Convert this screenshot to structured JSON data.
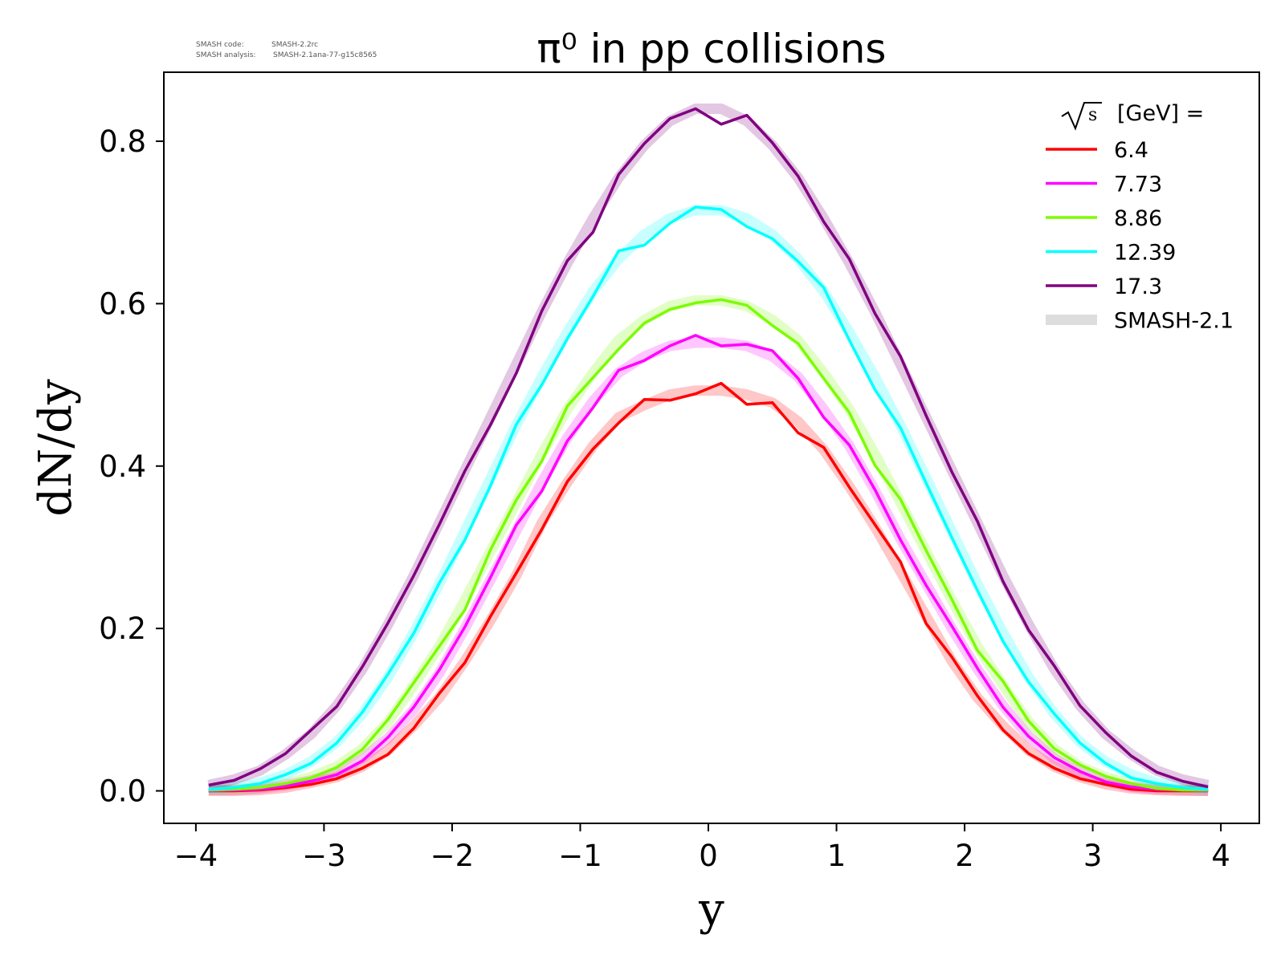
{
  "meta": {
    "code_label": "SMASH code:",
    "code_value": "SMASH-2.2rc",
    "analysis_label": "SMASH analysis:",
    "analysis_value": "SMASH-2.1ana-77-g15c8565"
  },
  "chart_data": {
    "type": "line",
    "title": "π⁰ in pp collisions",
    "xlabel": "y",
    "ylabel": "dN/dy",
    "xlim": [
      -4.25,
      4.3
    ],
    "ylim": [
      -0.04,
      0.885
    ],
    "xticks": [
      -4,
      -3,
      -2,
      -1,
      0,
      1,
      2,
      3,
      4
    ],
    "xtick_labels": [
      "−4",
      "−3",
      "−2",
      "−1",
      "0",
      "1",
      "2",
      "3",
      "4"
    ],
    "yticks": [
      0.0,
      0.2,
      0.4,
      0.6,
      0.8
    ],
    "ytick_labels": [
      "0.0",
      "0.2",
      "0.4",
      "0.6",
      "0.8"
    ],
    "grid": false,
    "legend": {
      "position": "top-right",
      "title": "[GeV] =",
      "title_symbol": "√s",
      "reference_label": "SMASH-2.1",
      "reference_color": "#dddddd"
    },
    "x": [
      -3.9,
      -3.7,
      -3.5,
      -3.3,
      -3.1,
      -2.9,
      -2.7,
      -2.5,
      -2.3,
      -2.1,
      -1.9,
      -1.7,
      -1.5,
      -1.3,
      -1.1,
      -0.9,
      -0.7,
      -0.5,
      -0.3,
      -0.1,
      0.1,
      0.3,
      0.5,
      0.7,
      0.9,
      1.1,
      1.3,
      1.5,
      1.7,
      1.9,
      2.1,
      2.3,
      2.5,
      2.7,
      2.9,
      3.1,
      3.3,
      3.5,
      3.7,
      3.9
    ],
    "series": [
      {
        "name": "6.4",
        "color": "#ff0000",
        "values": [
          0.0,
          0.0,
          0.001,
          0.004,
          0.008,
          0.015,
          0.028,
          0.045,
          0.077,
          0.12,
          0.158,
          0.215,
          0.268,
          0.322,
          0.381,
          0.421,
          0.453,
          0.482,
          0.481,
          0.489,
          0.502,
          0.476,
          0.478,
          0.441,
          0.423,
          0.374,
          0.328,
          0.282,
          0.206,
          0.165,
          0.117,
          0.075,
          0.046,
          0.028,
          0.015,
          0.008,
          0.002,
          0.0,
          0.0,
          0.0
        ],
        "reference": [
          0.0,
          0.0,
          0.001,
          0.004,
          0.01,
          0.017,
          0.03,
          0.05,
          0.08,
          0.115,
          0.16,
          0.21,
          0.265,
          0.33,
          0.38,
          0.425,
          0.46,
          0.475,
          0.488,
          0.493,
          0.493,
          0.488,
          0.478,
          0.455,
          0.42,
          0.375,
          0.325,
          0.27,
          0.215,
          0.16,
          0.115,
          0.08,
          0.05,
          0.03,
          0.017,
          0.008,
          0.003,
          0.001,
          0.0,
          0.0
        ]
      },
      {
        "name": "7.73",
        "color": "#ff00ff",
        "values": [
          0.0,
          0.001,
          0.002,
          0.006,
          0.012,
          0.02,
          0.037,
          0.066,
          0.103,
          0.149,
          0.202,
          0.263,
          0.327,
          0.369,
          0.431,
          0.472,
          0.518,
          0.53,
          0.548,
          0.561,
          0.548,
          0.55,
          0.542,
          0.508,
          0.46,
          0.426,
          0.371,
          0.309,
          0.253,
          0.203,
          0.151,
          0.103,
          0.067,
          0.041,
          0.024,
          0.011,
          0.005,
          0.002,
          0.001,
          0.0
        ],
        "reference": [
          0.001,
          0.001,
          0.003,
          0.007,
          0.013,
          0.022,
          0.04,
          0.065,
          0.1,
          0.145,
          0.2,
          0.26,
          0.32,
          0.38,
          0.435,
          0.48,
          0.515,
          0.535,
          0.548,
          0.552,
          0.552,
          0.548,
          0.535,
          0.51,
          0.47,
          0.425,
          0.37,
          0.31,
          0.255,
          0.2,
          0.15,
          0.105,
          0.067,
          0.04,
          0.023,
          0.012,
          0.005,
          0.002,
          0.001,
          0.0
        ]
      },
      {
        "name": "8.86",
        "color": "#7cfc00",
        "values": [
          0.001,
          0.002,
          0.004,
          0.009,
          0.016,
          0.029,
          0.051,
          0.088,
          0.133,
          0.178,
          0.223,
          0.297,
          0.358,
          0.406,
          0.474,
          0.509,
          0.544,
          0.576,
          0.593,
          0.601,
          0.605,
          0.598,
          0.573,
          0.551,
          0.508,
          0.466,
          0.401,
          0.359,
          0.296,
          0.236,
          0.173,
          0.135,
          0.086,
          0.052,
          0.032,
          0.018,
          0.009,
          0.003,
          0.001,
          0.001
        ],
        "reference": [
          0.001,
          0.002,
          0.004,
          0.009,
          0.017,
          0.03,
          0.052,
          0.085,
          0.13,
          0.178,
          0.235,
          0.295,
          0.355,
          0.415,
          0.47,
          0.515,
          0.555,
          0.58,
          0.597,
          0.604,
          0.604,
          0.597,
          0.58,
          0.555,
          0.515,
          0.47,
          0.415,
          0.355,
          0.295,
          0.235,
          0.178,
          0.13,
          0.085,
          0.052,
          0.03,
          0.017,
          0.009,
          0.004,
          0.002,
          0.001
        ]
      },
      {
        "name": "12.39",
        "color": "#00ffff",
        "values": [
          0.002,
          0.004,
          0.009,
          0.02,
          0.034,
          0.059,
          0.097,
          0.144,
          0.194,
          0.256,
          0.309,
          0.376,
          0.451,
          0.5,
          0.557,
          0.609,
          0.665,
          0.672,
          0.699,
          0.719,
          0.716,
          0.695,
          0.68,
          0.652,
          0.62,
          0.555,
          0.494,
          0.447,
          0.379,
          0.312,
          0.247,
          0.184,
          0.134,
          0.095,
          0.059,
          0.034,
          0.016,
          0.009,
          0.004,
          0.002
        ],
        "reference": [
          0.002,
          0.005,
          0.01,
          0.02,
          0.036,
          0.06,
          0.095,
          0.14,
          0.195,
          0.255,
          0.32,
          0.385,
          0.45,
          0.51,
          0.565,
          0.615,
          0.655,
          0.685,
          0.705,
          0.715,
          0.715,
          0.705,
          0.685,
          0.655,
          0.615,
          0.565,
          0.51,
          0.45,
          0.385,
          0.32,
          0.255,
          0.195,
          0.14,
          0.095,
          0.06,
          0.036,
          0.02,
          0.01,
          0.005,
          0.002
        ]
      },
      {
        "name": "17.3",
        "color": "#800080",
        "values": [
          0.007,
          0.013,
          0.027,
          0.046,
          0.075,
          0.104,
          0.153,
          0.207,
          0.265,
          0.328,
          0.394,
          0.451,
          0.514,
          0.591,
          0.653,
          0.688,
          0.759,
          0.797,
          0.828,
          0.84,
          0.821,
          0.832,
          0.798,
          0.757,
          0.701,
          0.655,
          0.588,
          0.535,
          0.462,
          0.393,
          0.332,
          0.258,
          0.198,
          0.154,
          0.105,
          0.072,
          0.043,
          0.023,
          0.012,
          0.005
        ],
        "reference": [
          0.007,
          0.014,
          0.025,
          0.045,
          0.07,
          0.105,
          0.15,
          0.205,
          0.265,
          0.33,
          0.395,
          0.46,
          0.525,
          0.59,
          0.65,
          0.705,
          0.755,
          0.795,
          0.825,
          0.84,
          0.84,
          0.825,
          0.795,
          0.755,
          0.705,
          0.65,
          0.59,
          0.525,
          0.46,
          0.395,
          0.33,
          0.265,
          0.205,
          0.15,
          0.105,
          0.07,
          0.045,
          0.025,
          0.014,
          0.007
        ]
      }
    ]
  }
}
